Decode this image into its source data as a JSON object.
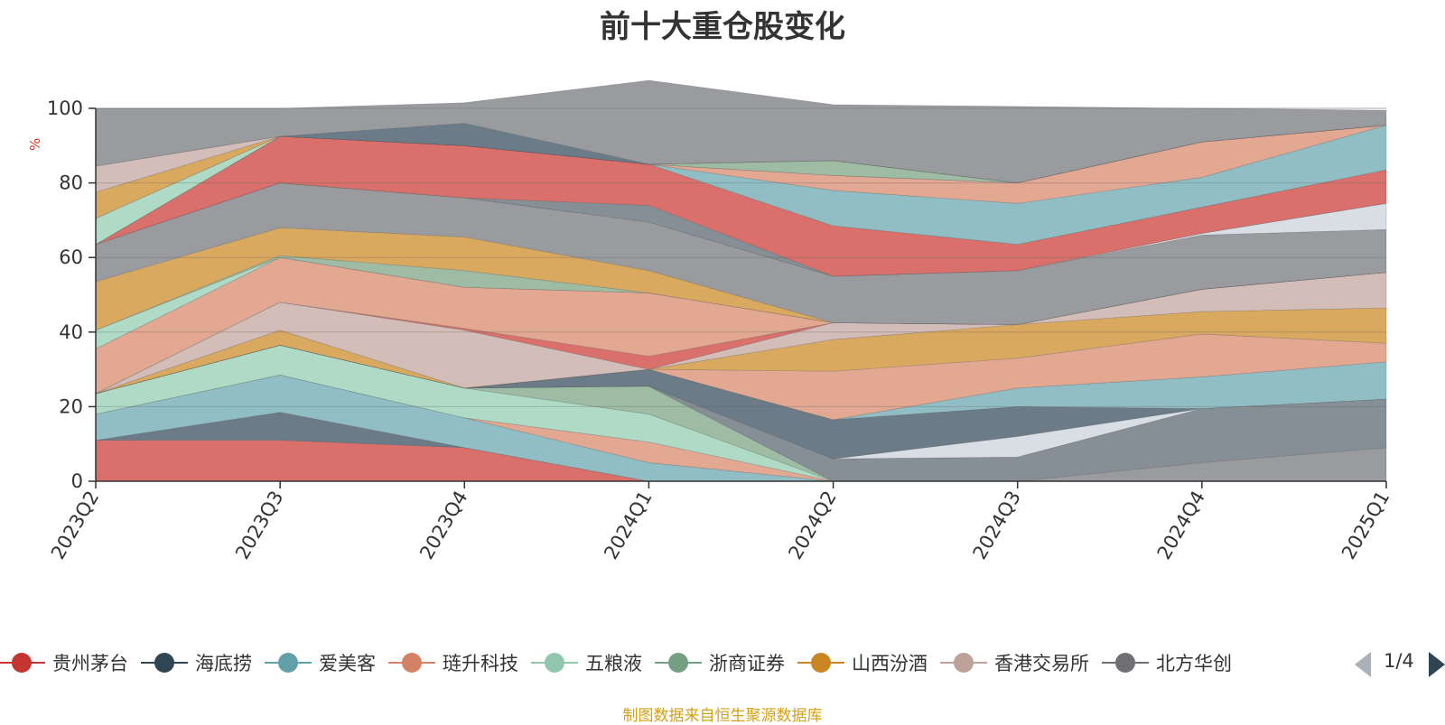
{
  "chart_data": {
    "type": "area",
    "title": "前十大重仓股变化",
    "ylabel": "%",
    "ylim": [
      0,
      100
    ],
    "yticks": [
      0,
      20,
      40,
      60,
      80,
      100
    ],
    "grid": true,
    "stacked": true,
    "categories": [
      "2023Q2",
      "2023Q3",
      "2023Q4",
      "2024Q1",
      "2024Q2",
      "2024Q3",
      "2024Q4",
      "2025Q1"
    ],
    "series": [
      {
        "name": "贵州茅台",
        "color": "#d9706c",
        "values": [
          11,
          11,
          9,
          0,
          0,
          0,
          0,
          0
        ]
      },
      {
        "name": "海底捞",
        "color": "#6b7b88",
        "values": [
          0,
          7.5,
          0,
          0,
          0,
          0,
          0,
          0
        ]
      },
      {
        "name": "爱美客",
        "color": "#91bec4",
        "values": [
          7,
          10,
          8,
          5,
          0,
          0,
          0,
          0
        ]
      },
      {
        "name": "",
        "color": "#e2a892",
        "values": [
          0,
          0,
          0,
          5.5,
          0,
          0,
          0,
          0
        ]
      },
      {
        "name": "五粮液",
        "color": "#afdbc6",
        "values": [
          5.5,
          8,
          8,
          7.5,
          0,
          0,
          0,
          0
        ]
      },
      {
        "name": "浙商证券",
        "color": "#9ebca4",
        "values": [
          0,
          0,
          0,
          7.5,
          0,
          0,
          0,
          0
        ]
      },
      {
        "name": "",
        "color": "#9a9b9f",
        "values": [
          0,
          0,
          0,
          0,
          0,
          0,
          5,
          9
        ]
      },
      {
        "name": "",
        "color": "#868e96",
        "values": [
          0,
          0,
          0,
          0,
          6,
          6.5,
          14.5,
          13
        ]
      },
      {
        "name": "",
        "color": "#d9dde4",
        "values": [
          0,
          0,
          0,
          0,
          0,
          5.5,
          0,
          0
        ]
      },
      {
        "name": "",
        "color": "#6b7b88",
        "values": [
          0,
          0,
          0,
          4.5,
          10.5,
          8,
          0,
          0
        ]
      },
      {
        "name": "",
        "color": "#91bec4",
        "values": [
          0,
          0,
          0,
          0,
          0,
          5,
          8.5,
          10
        ]
      },
      {
        "name": "",
        "color": "#e2a892",
        "values": [
          0,
          0,
          0,
          0,
          13,
          8,
          11.5,
          5
        ]
      },
      {
        "name": "山西汾酒",
        "color": "#daa960",
        "values": [
          0,
          4,
          0,
          0,
          8.5,
          9,
          6,
          9.5
        ]
      },
      {
        "name": "香港交易所",
        "color": "#d3bdb8",
        "values": [
          0,
          7.5,
          15.5,
          0,
          4.5,
          0,
          6,
          9.5
        ]
      },
      {
        "name": "",
        "color": "#d9706c",
        "values": [
          0,
          0,
          0.5,
          3.5,
          0,
          0,
          0,
          0
        ]
      },
      {
        "name": "",
        "color": "#e2a892",
        "values": [
          12,
          12,
          11,
          17,
          0,
          0,
          0,
          0
        ]
      },
      {
        "name": "",
        "color": "#afdbc6",
        "values": [
          5,
          0,
          0,
          0,
          0,
          0,
          0,
          0
        ]
      },
      {
        "name": "",
        "color": "#9ebca4",
        "values": [
          0,
          0.5,
          4.5,
          0,
          0,
          0,
          0,
          0
        ]
      },
      {
        "name": "",
        "color": "#daa960",
        "values": [
          13,
          7.5,
          9,
          6,
          0,
          0,
          0,
          0
        ]
      },
      {
        "name": "北方华创",
        "color": "#9a9b9f",
        "values": [
          10,
          12,
          10.5,
          13,
          12.5,
          14.5,
          14.5,
          11.5
        ]
      },
      {
        "name": "",
        "color": "#d9dde4",
        "values": [
          0,
          0,
          0,
          0,
          0,
          0,
          0.5,
          7
        ]
      },
      {
        "name": "",
        "color": "#868e96",
        "values": [
          0,
          0,
          0,
          4.5,
          0,
          0,
          0,
          0
        ]
      },
      {
        "name": "",
        "color": "#d9706c",
        "values": [
          0,
          12.5,
          14,
          11,
          13.5,
          7,
          7,
          9
        ]
      },
      {
        "name": "",
        "color": "#91bec4",
        "values": [
          0,
          0,
          0,
          0,
          9.5,
          11,
          8,
          12
        ]
      },
      {
        "name": "",
        "color": "#e2a892",
        "values": [
          0,
          0,
          0,
          0,
          4,
          5.5,
          9.5,
          0
        ]
      },
      {
        "name": "",
        "color": "#afdbc6",
        "values": [
          7,
          0,
          0,
          0,
          0,
          0,
          0,
          0
        ]
      },
      {
        "name": "",
        "color": "#9ebca4",
        "values": [
          0,
          0,
          0,
          0,
          4,
          0,
          0,
          0
        ]
      },
      {
        "name": "",
        "color": "#daa960",
        "values": [
          7,
          0,
          0,
          0,
          0,
          0,
          0,
          0
        ]
      },
      {
        "name": "",
        "color": "#d3bdb8",
        "values": [
          7,
          0,
          0,
          0,
          0,
          0,
          0,
          0
        ]
      },
      {
        "name": "",
        "color": "#6b7b88",
        "values": [
          0,
          0,
          6,
          0,
          0,
          0,
          0,
          0
        ]
      },
      {
        "name": "",
        "color": "#9a9b9f",
        "values": [
          15.5,
          7.5,
          5.5,
          22.5,
          15,
          20.5,
          9,
          4
        ]
      }
    ]
  },
  "legend": {
    "items": [
      {
        "label": "贵州茅台",
        "color": "#c23531"
      },
      {
        "label": "海底捞",
        "color": "#2f4554"
      },
      {
        "label": "爱美客",
        "color": "#61a0a8"
      },
      {
        "label": "琏升科技",
        "color": "#d48265"
      },
      {
        "label": "五粮液",
        "color": "#91c7ae"
      },
      {
        "label": "浙商证券",
        "color": "#749f83"
      },
      {
        "label": "山西汾酒",
        "color": "#ca8622"
      },
      {
        "label": "香港交易所",
        "color": "#bda29a"
      },
      {
        "label": "北方华创",
        "color": "#6e7074"
      }
    ],
    "page": "1/4"
  },
  "source_note": "制图数据来自恒生聚源数据库"
}
